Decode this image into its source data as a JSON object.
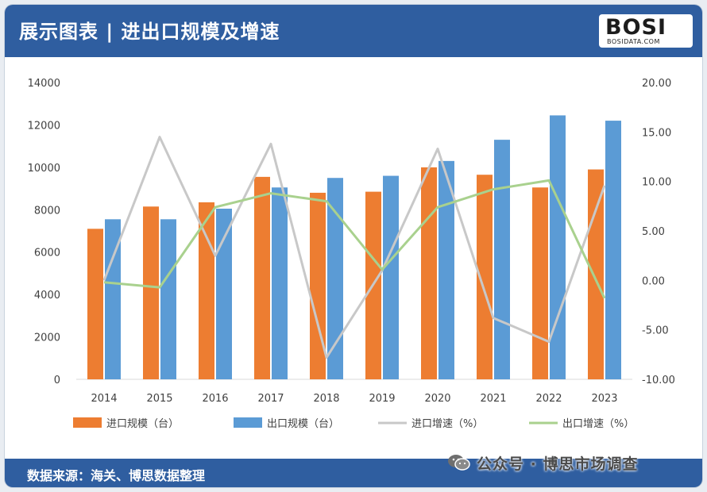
{
  "header": {
    "title": "展示图表 | 进出口规模及增速"
  },
  "logo": {
    "mark": "BOSI",
    "subtitle": "BOSIDATA.COM"
  },
  "footer": {
    "source": "数据来源：海关、博思数据整理"
  },
  "wechat": {
    "text": "公众号 · 博思市场调查",
    "icon": "wechat-icon"
  },
  "colors": {
    "header": "#2f5ea0",
    "import_bar": "#ed7d31",
    "export_bar": "#5b9bd5",
    "import_growth": "#c8c8c8",
    "export_growth": "#a9d18e"
  },
  "chart_data": {
    "type": "bar",
    "categories": [
      "2014",
      "2015",
      "2016",
      "2017",
      "2018",
      "2019",
      "2020",
      "2021",
      "2022",
      "2023"
    ],
    "left_ticks": [
      "14000",
      "12000",
      "10000",
      "8000",
      "6000",
      "4000",
      "2000",
      "0"
    ],
    "right_ticks": [
      "20.00",
      "15.00",
      "10.00",
      "5.00",
      "0.00",
      "-5.00",
      "-10.00"
    ],
    "ylim_left": [
      0,
      14000
    ],
    "ylim_right": [
      -10,
      20
    ],
    "series": [
      {
        "name": "进口规模（台）",
        "kind": "bar",
        "axis": "left",
        "values": [
          7100,
          8150,
          8350,
          9550,
          8800,
          8850,
          10000,
          9650,
          9050,
          9900
        ]
      },
      {
        "name": "出口规模（台）",
        "kind": "bar",
        "axis": "left",
        "values": [
          7550,
          7550,
          8050,
          9050,
          9500,
          9600,
          10300,
          11300,
          12450,
          12200
        ]
      },
      {
        "name": "进口增速（%）",
        "kind": "line",
        "axis": "right",
        "values": [
          0.0,
          14.5,
          2.5,
          13.8,
          -7.8,
          1.0,
          13.3,
          -3.8,
          -6.2,
          9.6
        ]
      },
      {
        "name": "出口增速（%）",
        "kind": "line",
        "axis": "right",
        "values": [
          -0.2,
          -0.7,
          7.4,
          8.8,
          8.0,
          1.1,
          7.4,
          9.2,
          10.1,
          -1.8
        ]
      }
    ],
    "legend_position": "bottom",
    "grid": false
  }
}
